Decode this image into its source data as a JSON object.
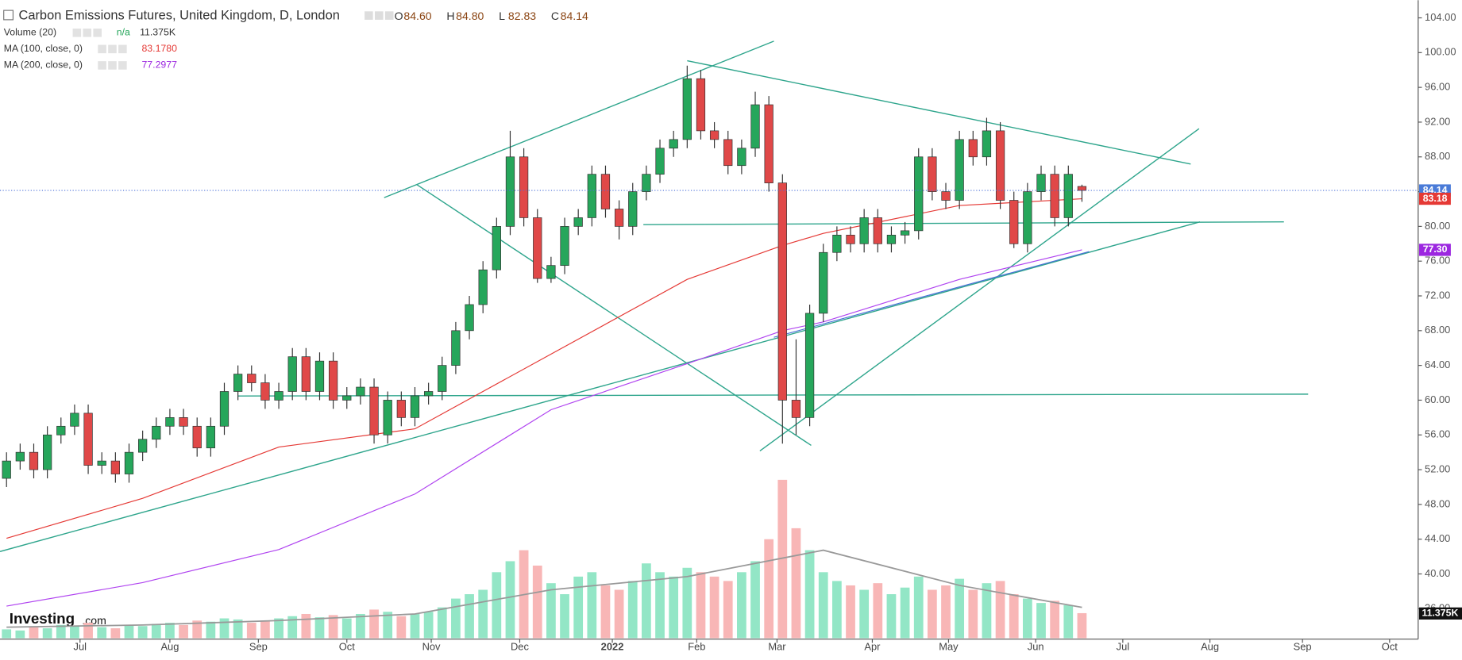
{
  "chart_data": {
    "type": "candlestick",
    "title": "Carbon Emissions Futures, United Kingdom, D, London",
    "ohlc_legend": [
      {
        "label": "O",
        "value": "84.60"
      },
      {
        "label": "H",
        "value": "84.80"
      },
      {
        "label": "L",
        "value": "82.83"
      },
      {
        "label": "C",
        "value": "84.14"
      }
    ],
    "indicators": [
      {
        "name": "Volume (20)",
        "state": "n/a",
        "value": "11.375K",
        "color": "#333333"
      },
      {
        "name": "MA (100, close, 0)",
        "value": "83.1780",
        "color": "#e53935"
      },
      {
        "name": "MA (200, close, 0)",
        "value": "77.2977",
        "color": "#9c27e0"
      }
    ],
    "open": [
      51,
      53,
      54,
      52,
      56,
      57,
      58.5,
      52.5,
      53,
      51.5,
      54,
      55.5,
      57,
      58,
      57,
      54.5,
      57,
      61,
      63,
      62,
      60,
      61,
      65,
      61,
      64.5,
      60,
      60.5,
      61.5,
      56,
      60,
      58,
      60.5,
      61,
      64,
      68,
      71,
      75,
      80,
      88,
      81,
      74,
      75.5,
      80,
      81,
      86,
      82,
      80,
      84,
      86,
      89,
      90,
      97,
      91,
      90,
      87,
      89,
      94,
      85,
      60,
      58,
      70,
      77,
      79,
      78,
      81,
      78,
      79,
      79.5,
      88,
      84,
      83,
      90,
      88,
      91,
      83,
      78,
      84,
      86,
      81,
      84.6
    ],
    "high": [
      54,
      55,
      55,
      57,
      58,
      59.5,
      59.5,
      54,
      54,
      55,
      56.5,
      58,
      59,
      59,
      58,
      58,
      62,
      64,
      64,
      63,
      62,
      66,
      66,
      65.5,
      65.5,
      61.5,
      62.5,
      62.5,
      61,
      61,
      61.5,
      62,
      65,
      69,
      72,
      76,
      81,
      91,
      89,
      82,
      76.5,
      81,
      82,
      87,
      87,
      83,
      85,
      87,
      90,
      91,
      98.5,
      98,
      92,
      91,
      90,
      95.5,
      95,
      86,
      67,
      71,
      78,
      80,
      80,
      82,
      82,
      80,
      80.5,
      89,
      89,
      85,
      91,
      91,
      92.5,
      92,
      84,
      85,
      87,
      87,
      87,
      84.8
    ],
    "low": [
      50,
      52,
      51,
      51,
      55,
      56,
      51.5,
      51.5,
      50.5,
      50.5,
      53,
      54.5,
      56,
      56,
      53.5,
      53.5,
      56,
      60,
      61,
      59,
      59,
      60,
      60,
      60,
      59,
      59,
      59.5,
      55,
      55,
      57,
      57,
      59.5,
      60,
      63,
      67,
      70,
      74,
      79,
      80,
      73.5,
      73.5,
      74.5,
      79,
      80,
      81,
      78.5,
      79,
      83,
      85,
      88,
      89,
      90,
      89,
      86,
      86,
      88,
      84,
      55,
      56,
      57,
      69,
      76,
      77,
      77,
      77,
      77,
      78,
      78.5,
      83,
      82,
      82,
      87,
      87,
      82,
      77.5,
      77,
      83,
      80,
      80,
      82.83
    ],
    "close": [
      53,
      54,
      52,
      56,
      57,
      58.5,
      52.5,
      53,
      51.5,
      54,
      55.5,
      57,
      58,
      57,
      54.5,
      57,
      61,
      63,
      62,
      60,
      61,
      65,
      61,
      64.5,
      60,
      60.5,
      61.5,
      56,
      60,
      58,
      60.5,
      61,
      64,
      68,
      71,
      75,
      80,
      88,
      81,
      74,
      75.5,
      80,
      81,
      86,
      82,
      80,
      84,
      86,
      89,
      90,
      97,
      91,
      90,
      87,
      89,
      94,
      85,
      60,
      58,
      70,
      77,
      79,
      78,
      81,
      78,
      79,
      79.5,
      88,
      84,
      83,
      90,
      88,
      91,
      83,
      78,
      84,
      86,
      81,
      86,
      84.14
    ],
    "volume": [
      4000,
      3500,
      5000,
      4500,
      6000,
      5500,
      7000,
      5000,
      4500,
      6000,
      5500,
      6500,
      7000,
      6000,
      8000,
      7500,
      9000,
      8500,
      7000,
      8000,
      9000,
      10000,
      11000,
      9500,
      10500,
      9000,
      11000,
      13000,
      12000,
      10000,
      11000,
      12000,
      14000,
      18000,
      20000,
      22000,
      30000,
      35000,
      40000,
      33000,
      25000,
      20000,
      28000,
      30000,
      24000,
      22000,
      26000,
      34000,
      30000,
      28000,
      32000,
      30000,
      28000,
      26000,
      30000,
      35000,
      45000,
      72000,
      50000,
      40000,
      30000,
      26000,
      24000,
      22000,
      25000,
      20000,
      23000,
      28000,
      22000,
      24000,
      27000,
      22000,
      25000,
      26000,
      20000,
      18000,
      16000,
      17000,
      15000,
      11375
    ],
    "up_color": "#26a65b",
    "down_color": "#e04848",
    "volume_up_color": "#93e6c6",
    "volume_down_color": "#f8b6b6",
    "lines": [
      {
        "name": "MA (100, close, 0)",
        "color": "#e53935",
        "x": [
          0,
          10,
          20,
          30,
          40,
          50,
          57,
          60,
          70,
          79
        ],
        "values": [
          44.1,
          48.7,
          54.6,
          56.7,
          65.3,
          73.9,
          77.8,
          79.2,
          82.4,
          83.18
        ]
      },
      {
        "name": "MA (200, close, 0)",
        "color": "#b044f0",
        "x": [
          0,
          10,
          20,
          30,
          40,
          50,
          57,
          60,
          70,
          79
        ],
        "values": [
          36.3,
          39.0,
          42.8,
          49.2,
          58.9,
          64.2,
          68,
          69,
          73.9,
          77.3
        ]
      }
    ],
    "volume_ma": {
      "color": "#999999",
      "x": [
        0,
        10,
        20,
        30,
        40,
        50,
        60,
        70,
        79
      ],
      "values": [
        5000,
        6000,
        8000,
        11000,
        22000,
        28000,
        40000,
        24000,
        14000
      ]
    },
    "price_badges": [
      {
        "label": "84.14",
        "value": 84.14,
        "color": "#4a7bd8"
      },
      {
        "label": "83.18",
        "value": 83.18,
        "color": "#e53935"
      },
      {
        "label": "77.30",
        "value": 77.3,
        "color": "#9c27e0"
      }
    ],
    "volume_badge": "11.375K",
    "last_price_line": 84.14,
    "ylim": [
      32.5,
      105.5
    ],
    "yticks": [
      {
        "value": 104,
        "label": "104.00"
      },
      {
        "value": 100,
        "label": "100.00"
      },
      {
        "value": 96,
        "label": "96.00"
      },
      {
        "value": 92,
        "label": "92.00"
      },
      {
        "value": 88,
        "label": "88.00"
      },
      {
        "value": 84,
        "label": "84.00"
      },
      {
        "value": 80,
        "label": "80.00"
      },
      {
        "value": 76,
        "label": "76.00"
      },
      {
        "value": 72,
        "label": "72.00"
      },
      {
        "value": 68,
        "label": "68.00"
      },
      {
        "value": 64,
        "label": "64.00"
      },
      {
        "value": 60,
        "label": "60.00"
      },
      {
        "value": 56,
        "label": "56.00"
      },
      {
        "value": 52,
        "label": "52.00"
      },
      {
        "value": 48,
        "label": "48.00"
      },
      {
        "value": 44,
        "label": "44.00"
      },
      {
        "value": 40,
        "label": "40.00"
      },
      {
        "value": 36,
        "label": "36.00"
      }
    ],
    "xticks": [
      {
        "value": 5.4,
        "label": "Jul"
      },
      {
        "value": 12,
        "label": "Aug"
      },
      {
        "value": 18.5,
        "label": "Sep"
      },
      {
        "value": 25,
        "label": "Oct"
      },
      {
        "value": 31.2,
        "label": "Nov"
      },
      {
        "value": 37.7,
        "label": "Dec"
      },
      {
        "value": 44.5,
        "label": "2022"
      },
      {
        "value": 50.7,
        "label": "Feb"
      },
      {
        "value": 56.6,
        "label": "Mar"
      },
      {
        "value": 63.6,
        "label": "Apr"
      },
      {
        "value": 69.2,
        "label": "May"
      },
      {
        "value": 75.6,
        "label": "Jun"
      },
      {
        "value": 82,
        "label": "Jul"
      },
      {
        "value": 88.4,
        "label": "Aug"
      },
      {
        "value": 95.2,
        "label": "Sep"
      },
      {
        "value": 101.6,
        "label": "Oct"
      }
    ],
    "watermark": {
      "brand": "Investing",
      "suffix": ".com"
    }
  }
}
